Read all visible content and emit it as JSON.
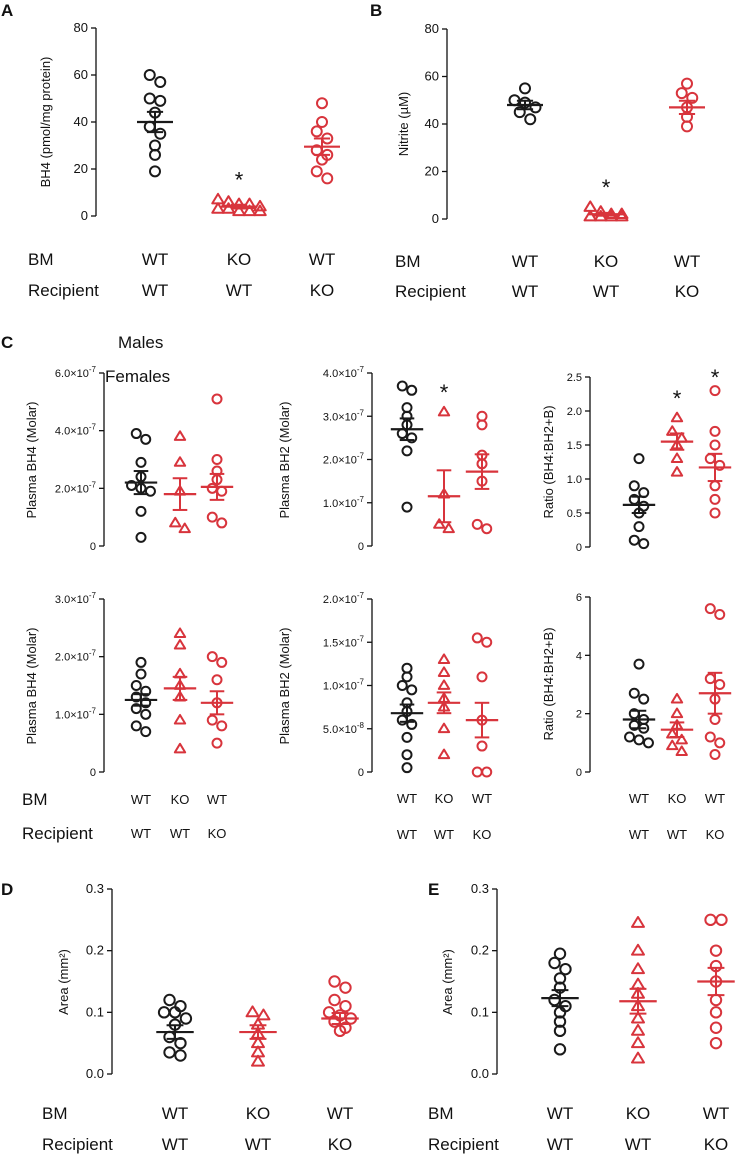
{
  "colors": {
    "black": "#1a1a1a",
    "red": "#d8343c"
  },
  "panel_letters": {
    "A": "A",
    "B": "B",
    "C": "C",
    "D": "D",
    "E": "E"
  },
  "section_titles": {
    "males": "Males",
    "females": "Females"
  },
  "row_labels": {
    "bm": "BM",
    "recipient": "Recipient"
  },
  "chart_data": [
    {
      "id": "A",
      "type": "scatter",
      "ylabel": "BH4 (pmol/mg protein)",
      "ylim": [
        0,
        80
      ],
      "yticks": [
        0,
        20,
        40,
        60,
        80
      ],
      "ytick_labels": [
        "0",
        "20",
        "40",
        "60",
        "80"
      ],
      "bm": [
        "WT",
        "KO",
        "WT"
      ],
      "recipient": [
        "WT",
        "WT",
        "KO"
      ],
      "groups": [
        {
          "color": "black",
          "marker": "circle",
          "values": [
            60,
            57,
            50,
            49,
            44,
            38,
            35,
            30,
            26,
            19
          ],
          "mean": 40,
          "sem": 4.3,
          "sig": false
        },
        {
          "color": "red",
          "marker": "triangle",
          "values": [
            7,
            6,
            5,
            5,
            4,
            3,
            3,
            2,
            2,
            2
          ],
          "mean": 4,
          "sem": 0.8,
          "sig": true
        },
        {
          "color": "red",
          "marker": "circle",
          "values": [
            48,
            40,
            36,
            33,
            28,
            26,
            24,
            19,
            16
          ],
          "mean": 29.5,
          "sem": 3.5,
          "sig": false
        }
      ]
    },
    {
      "id": "B",
      "type": "scatter",
      "ylabel": "Nitrite (µM)",
      "ylim": [
        0,
        80
      ],
      "yticks": [
        0,
        20,
        40,
        60,
        80
      ],
      "ytick_labels": [
        "0",
        "20",
        "40",
        "60",
        "80"
      ],
      "bm": [
        "WT",
        "KO",
        "WT"
      ],
      "recipient": [
        "WT",
        "WT",
        "KO"
      ],
      "groups": [
        {
          "color": "black",
          "marker": "circle",
          "values": [
            55,
            50,
            49,
            47,
            45,
            42
          ],
          "mean": 48,
          "sem": 1.8,
          "sig": false
        },
        {
          "color": "red",
          "marker": "triangle",
          "values": [
            5,
            3,
            2,
            2,
            1,
            1,
            1,
            1
          ],
          "mean": 2,
          "sem": 0.6,
          "sig": true
        },
        {
          "color": "red",
          "marker": "circle",
          "values": [
            57,
            53,
            51,
            47,
            43,
            39
          ],
          "mean": 47,
          "sem": 2.8,
          "sig": false
        }
      ]
    },
    {
      "id": "C1",
      "type": "scatter",
      "section": "Males",
      "ylabel": "Plasma BH4 (Molar)",
      "ylim": [
        0,
        6e-07
      ],
      "yticks": [
        0,
        2e-07,
        4e-07,
        6e-07
      ],
      "ytick_labels": [
        {
          "m": "0",
          "e": ""
        },
        {
          "m": "2.0×10",
          "e": "-7"
        },
        {
          "m": "4.0×10",
          "e": "-7"
        },
        {
          "m": "6.0×10",
          "e": "-7"
        }
      ],
      "bm": [
        "WT",
        "KO",
        "WT"
      ],
      "recipient": [
        "WT",
        "WT",
        "KO"
      ],
      "groups": [
        {
          "color": "black",
          "marker": "circle",
          "values": [
            3.9e-07,
            3.7e-07,
            2.9e-07,
            2.4e-07,
            2.1e-07,
            2e-07,
            1.9e-07,
            1.2e-07,
            3e-08
          ],
          "mean": 2.2e-07,
          "sem": 4e-08,
          "sig": false
        },
        {
          "color": "red",
          "marker": "triangle",
          "values": [
            3.8e-07,
            2.9e-07,
            1.9e-07,
            8e-08,
            6e-08
          ],
          "mean": 1.8e-07,
          "sem": 5.5e-08,
          "sig": false
        },
        {
          "color": "red",
          "marker": "circle",
          "values": [
            5.1e-07,
            3e-07,
            2.6e-07,
            2.3e-07,
            2e-07,
            1.9e-07,
            1e-07,
            8e-08
          ],
          "mean": 2.05e-07,
          "sem": 4.5e-08,
          "sig": false
        }
      ]
    },
    {
      "id": "C2",
      "type": "scatter",
      "section": "Males",
      "ylabel": "Plasma BH2 (Molar)",
      "ylim": [
        0,
        4e-07
      ],
      "yticks": [
        0,
        1e-07,
        2e-07,
        3e-07,
        4e-07
      ],
      "ytick_labels": [
        {
          "m": "0",
          "e": ""
        },
        {
          "m": "1.0×10",
          "e": "-7"
        },
        {
          "m": "2.0×10",
          "e": "-7"
        },
        {
          "m": "3.0×10",
          "e": "-7"
        },
        {
          "m": "4.0×10",
          "e": "-7"
        }
      ],
      "bm": [
        "WT",
        "KO",
        "WT"
      ],
      "recipient": [
        "WT",
        "WT",
        "KO"
      ],
      "groups": [
        {
          "color": "black",
          "marker": "circle",
          "values": [
            3.7e-07,
            3.6e-07,
            3.2e-07,
            3e-07,
            2.8e-07,
            2.6e-07,
            2.5e-07,
            2.2e-07,
            9e-08
          ],
          "mean": 2.7e-07,
          "sem": 2.5e-08,
          "sig": false
        },
        {
          "color": "red",
          "marker": "triangle",
          "values": [
            3.1e-07,
            1.2e-07,
            5e-08,
            4e-08
          ],
          "mean": 1.15e-07,
          "sem": 6e-08,
          "sig": true
        },
        {
          "color": "red",
          "marker": "circle",
          "values": [
            3e-07,
            2.8e-07,
            2.1e-07,
            1.9e-07,
            1.5e-07,
            5e-08,
            4e-08
          ],
          "mean": 1.72e-07,
          "sem": 4e-08,
          "sig": false
        }
      ]
    },
    {
      "id": "C3",
      "type": "scatter",
      "section": "Males",
      "ylabel": "Ratio (BH4:BH2+B)",
      "ylim": [
        0,
        2.5
      ],
      "yticks": [
        0,
        0.5,
        1.0,
        1.5,
        2.0,
        2.5
      ],
      "ytick_labels": [
        "0",
        "0.5",
        "1.0",
        "1.5",
        "2.0",
        "2.5"
      ],
      "bm": [
        "WT",
        "KO",
        "WT"
      ],
      "recipient": [
        "WT",
        "WT",
        "KO"
      ],
      "groups": [
        {
          "color": "black",
          "marker": "circle",
          "values": [
            1.3,
            0.9,
            0.8,
            0.7,
            0.6,
            0.5,
            0.3,
            0.1,
            0.05
          ],
          "mean": 0.62,
          "sem": 0.12,
          "sig": false
        },
        {
          "color": "red",
          "marker": "triangle",
          "values": [
            1.9,
            1.7,
            1.6,
            1.5,
            1.3,
            1.1
          ],
          "mean": 1.55,
          "sem": 0.12,
          "sig": true
        },
        {
          "color": "red",
          "marker": "circle",
          "values": [
            2.3,
            1.7,
            1.5,
            1.3,
            1.2,
            0.9,
            0.7,
            0.5
          ],
          "mean": 1.17,
          "sem": 0.2,
          "sig": true
        }
      ]
    },
    {
      "id": "C4",
      "type": "scatter",
      "section": "Females",
      "ylabel": "Plasma BH4 (Molar)",
      "ylim": [
        0,
        3e-07
      ],
      "yticks": [
        0,
        1e-07,
        2e-07,
        3e-07
      ],
      "ytick_labels": [
        {
          "m": "0",
          "e": ""
        },
        {
          "m": "1.0×10",
          "e": "-7"
        },
        {
          "m": "2.0×10",
          "e": "-7"
        },
        {
          "m": "3.0×10",
          "e": "-7"
        }
      ],
      "bm": [
        "WT",
        "KO",
        "WT"
      ],
      "recipient": [
        "WT",
        "WT",
        "KO"
      ],
      "groups": [
        {
          "color": "black",
          "marker": "circle",
          "values": [
            1.9e-07,
            1.7e-07,
            1.5e-07,
            1.4e-07,
            1.3e-07,
            1.2e-07,
            1.1e-07,
            1e-07,
            8e-08,
            7e-08
          ],
          "mean": 1.25e-07,
          "sem": 1e-08,
          "sig": false
        },
        {
          "color": "red",
          "marker": "triangle",
          "values": [
            2.4e-07,
            2.2e-07,
            1.7e-07,
            1.5e-07,
            1.3e-07,
            9e-08,
            4e-08
          ],
          "mean": 1.45e-07,
          "sem": 2e-08,
          "sig": false
        },
        {
          "color": "red",
          "marker": "circle",
          "values": [
            2e-07,
            1.9e-07,
            1.6e-07,
            1.2e-07,
            9e-08,
            8e-08,
            5e-08
          ],
          "mean": 1.2e-07,
          "sem": 2e-08,
          "sig": false
        }
      ]
    },
    {
      "id": "C5",
      "type": "scatter",
      "section": "Females",
      "ylabel": "Plasma BH2 (Molar)",
      "ylim": [
        0,
        2e-07
      ],
      "yticks": [
        0,
        5e-08,
        1e-07,
        1.5e-07,
        2e-07
      ],
      "ytick_labels": [
        {
          "m": "0",
          "e": ""
        },
        {
          "m": "5.0×10",
          "e": "-8"
        },
        {
          "m": "1.0×10",
          "e": "-7"
        },
        {
          "m": "1.5×10",
          "e": "-7"
        },
        {
          "m": "2.0×10",
          "e": "-7"
        }
      ],
      "bm": [
        "WT",
        "KO",
        "WT"
      ],
      "recipient": [
        "WT",
        "WT",
        "KO"
      ],
      "groups": [
        {
          "color": "black",
          "marker": "circle",
          "values": [
            1.2e-07,
            1.1e-07,
            1e-07,
            9.5e-08,
            8e-08,
            7e-08,
            6e-08,
            5.5e-08,
            4e-08,
            2e-08,
            5e-09
          ],
          "mean": 6.8e-08,
          "sem": 1e-08,
          "sig": false
        },
        {
          "color": "red",
          "marker": "triangle",
          "values": [
            1.3e-07,
            1.15e-07,
            1e-07,
            8.5e-08,
            7.5e-08,
            5e-08,
            2e-08
          ],
          "mean": 8e-08,
          "sem": 1.2e-08,
          "sig": false
        },
        {
          "color": "red",
          "marker": "circle",
          "values": [
            1.55e-07,
            1.5e-07,
            1.1e-07,
            6e-08,
            3e-08,
            0.0,
            0.0
          ],
          "mean": 6e-08,
          "sem": 2e-08,
          "sig": false
        }
      ]
    },
    {
      "id": "C6",
      "type": "scatter",
      "section": "Females",
      "ylabel": "Ratio (BH4:BH2+B)",
      "ylim": [
        0,
        6
      ],
      "yticks": [
        0,
        2,
        4,
        6
      ],
      "ytick_labels": [
        "0",
        "2",
        "4",
        "6"
      ],
      "bm": [
        "WT",
        "KO",
        "WT"
      ],
      "recipient": [
        "WT",
        "WT",
        "KO"
      ],
      "groups": [
        {
          "color": "black",
          "marker": "circle",
          "values": [
            3.7,
            2.7,
            2.5,
            2.0,
            1.8,
            1.6,
            1.5,
            1.2,
            1.1,
            1.0
          ],
          "mean": 1.8,
          "sem": 0.3,
          "sig": false
        },
        {
          "color": "red",
          "marker": "triangle",
          "values": [
            2.5,
            2.0,
            1.6,
            1.3,
            1.1,
            0.9,
            0.7
          ],
          "mean": 1.45,
          "sem": 0.25,
          "sig": false
        },
        {
          "color": "red",
          "marker": "circle",
          "values": [
            5.6,
            5.4,
            3.2,
            3.0,
            2.5,
            1.8,
            1.2,
            1.0,
            0.6
          ],
          "mean": 2.7,
          "sem": 0.7,
          "sig": false
        }
      ]
    },
    {
      "id": "D",
      "type": "scatter",
      "ylabel": "Area (mm²)",
      "ylim": [
        0,
        0.3
      ],
      "yticks": [
        0,
        0.1,
        0.2,
        0.3
      ],
      "ytick_labels": [
        "0.0",
        "0.1",
        "0.2",
        "0.3"
      ],
      "bm": [
        "WT",
        "KO",
        "WT"
      ],
      "recipient": [
        "WT",
        "WT",
        "KO"
      ],
      "groups": [
        {
          "color": "black",
          "marker": "circle",
          "values": [
            0.12,
            0.11,
            0.1,
            0.1,
            0.09,
            0.08,
            0.06,
            0.05,
            0.035,
            0.03
          ],
          "mean": 0.068,
          "sem": 0.011,
          "sig": false
        },
        {
          "color": "red",
          "marker": "triangle",
          "values": [
            0.1,
            0.095,
            0.08,
            0.065,
            0.05,
            0.035,
            0.02
          ],
          "mean": 0.068,
          "sem": 0.011,
          "sig": false
        },
        {
          "color": "red",
          "marker": "circle",
          "values": [
            0.15,
            0.14,
            0.12,
            0.11,
            0.1,
            0.095,
            0.09,
            0.085,
            0.075,
            0.07
          ],
          "mean": 0.09,
          "sem": 0.009,
          "sig": false
        }
      ]
    },
    {
      "id": "E",
      "type": "scatter",
      "ylabel": "Area (mm²)",
      "ylim": [
        0,
        0.3
      ],
      "yticks": [
        0,
        0.1,
        0.2,
        0.3
      ],
      "ytick_labels": [
        "0.0",
        "0.1",
        "0.2",
        "0.3"
      ],
      "bm": [
        "WT",
        "KO",
        "WT"
      ],
      "recipient": [
        "WT",
        "WT",
        "KO"
      ],
      "groups": [
        {
          "color": "black",
          "marker": "circle",
          "values": [
            0.195,
            0.18,
            0.17,
            0.155,
            0.14,
            0.12,
            0.11,
            0.1,
            0.085,
            0.07,
            0.04
          ],
          "mean": 0.123,
          "sem": 0.013,
          "sig": false
        },
        {
          "color": "red",
          "marker": "triangle",
          "values": [
            0.245,
            0.2,
            0.17,
            0.145,
            0.13,
            0.11,
            0.09,
            0.07,
            0.05,
            0.025
          ],
          "mean": 0.118,
          "sem": 0.02,
          "sig": false
        },
        {
          "color": "red",
          "marker": "circle",
          "values": [
            0.25,
            0.25,
            0.2,
            0.175,
            0.15,
            0.12,
            0.1,
            0.075,
            0.05
          ],
          "mean": 0.15,
          "sem": 0.022,
          "sig": false
        }
      ]
    }
  ]
}
